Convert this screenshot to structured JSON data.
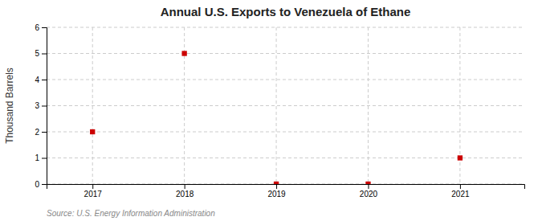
{
  "chart_data": {
    "type": "scatter",
    "title": "Annual U.S. Exports to Venezuela of Ethane",
    "ylabel": "Thousand Barrels",
    "source": "Source: U.S. Energy Information Administration",
    "x": [
      2017,
      2018,
      2019,
      2020,
      2021
    ],
    "values": [
      2,
      5,
      0,
      0,
      1
    ],
    "color": "#CC0000",
    "marker": "square",
    "xlim": [
      2016.5,
      2021.7
    ],
    "xticks": [
      2017,
      2018,
      2019,
      2020,
      2021
    ],
    "ylim": [
      0,
      6
    ],
    "yticks": [
      0,
      1,
      2,
      3,
      4,
      5,
      6
    ],
    "grid": true
  }
}
